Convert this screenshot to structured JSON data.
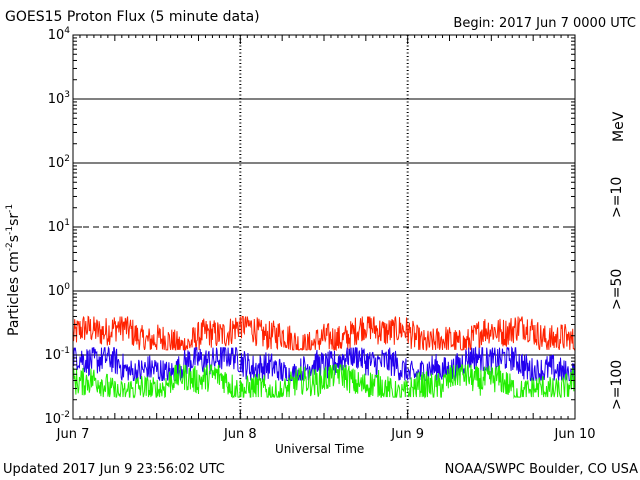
{
  "header": {
    "title": "GOES15 Proton Flux (5 minute data)",
    "begin": "Begin: 2017 Jun 7 0000 UTC"
  },
  "footer": {
    "updated": "Updated 2017 Jun  9 23:56:02 UTC",
    "credit": "NOAA/SWPC Boulder, CO USA"
  },
  "colors": {
    "ge10": "#ff2200",
    "ge50": "#2200ee",
    "ge100": "#22ee00"
  },
  "chart_data": {
    "type": "line",
    "yscale": "log",
    "ylim": [
      0.01,
      10000
    ],
    "xlim_days": [
      0,
      3
    ],
    "xlabel": "Universal Time",
    "ylabel": "Particles cm-2s-1sr-1",
    "x_ticks": [
      "Jun 7",
      "Jun 8",
      "Jun 9",
      "Jun 10"
    ],
    "y_ticks": [
      {
        "base": "10",
        "exp": "-2"
      },
      {
        "base": "10",
        "exp": "-1"
      },
      {
        "base": "10",
        "exp": "0"
      },
      {
        "base": "10",
        "exp": "1"
      },
      {
        "base": "10",
        "exp": "2"
      },
      {
        "base": "10",
        "exp": "3"
      },
      {
        "base": "10",
        "exp": "4"
      }
    ],
    "unit_label": "MeV",
    "series": [
      {
        "name": ">=10",
        "level_approx": 0.2,
        "range": [
          0.12,
          0.4
        ]
      },
      {
        "name": ">=50",
        "level_approx": 0.07,
        "range": [
          0.04,
          0.13
        ]
      },
      {
        "name": ">=100",
        "level_approx": 0.035,
        "range": [
          0.022,
          0.07
        ]
      }
    ],
    "reference_lines": [
      {
        "value": 10,
        "style": "dashed"
      },
      {
        "value": 0.1,
        "style": "solid"
      }
    ]
  }
}
